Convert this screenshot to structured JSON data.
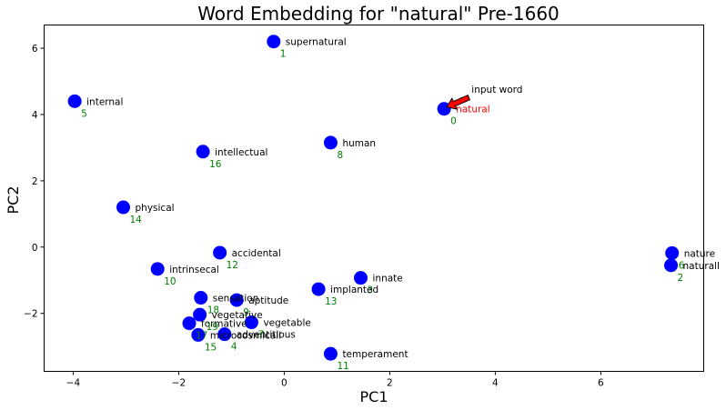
{
  "chart_data": {
    "type": "scatter",
    "title": "Word Embedding for \"natural\" Pre-1660",
    "xlabel": "PC1",
    "ylabel": "PC2",
    "xlim": [
      -4.55,
      7.95
    ],
    "ylim": [
      -3.75,
      6.7
    ],
    "xticks": [
      -4,
      -2,
      0,
      2,
      4,
      6
    ],
    "yticks": [
      -2,
      0,
      2,
      4,
      6
    ],
    "marker_color": "#0000ff",
    "word_color": "#000000",
    "highlight_word_color": "#ff0000",
    "index_color": "#008000",
    "points": [
      {
        "word": "natural",
        "index": "0",
        "x": 3.03,
        "y": 4.17,
        "highlight": true
      },
      {
        "word": "supernatural",
        "index": "1",
        "x": -0.2,
        "y": 6.2
      },
      {
        "word": "naturall",
        "index": "2",
        "x": 7.33,
        "y": -0.55
      },
      {
        "word": "innate",
        "index": "3",
        "x": 1.45,
        "y": -0.93
      },
      {
        "word": "adventitious",
        "index": "4",
        "x": -1.13,
        "y": -2.63
      },
      {
        "word": "internal",
        "index": "5",
        "x": -3.97,
        "y": 4.4
      },
      {
        "word": "nature",
        "index": "6",
        "x": 7.35,
        "y": -0.18
      },
      {
        "word": "vegetable",
        "index": "7",
        "x": -0.62,
        "y": -2.27
      },
      {
        "word": "human",
        "index": "8",
        "x": 0.88,
        "y": 3.15
      },
      {
        "word": "aptitude",
        "index": "9",
        "x": -0.9,
        "y": -1.6
      },
      {
        "word": "intrinsecal",
        "index": "10",
        "x": -2.4,
        "y": -0.66
      },
      {
        "word": "temperament",
        "index": "11",
        "x": 0.88,
        "y": -3.22
      },
      {
        "word": "accidental",
        "index": "12",
        "x": -1.22,
        "y": -0.17
      },
      {
        "word": "implanted",
        "index": "13",
        "x": 0.65,
        "y": -1.27
      },
      {
        "word": "physical",
        "index": "14",
        "x": -3.05,
        "y": 1.2
      },
      {
        "word": "microcosmicall",
        "index": "15",
        "x": -1.63,
        "y": -2.65
      },
      {
        "word": "intellectual",
        "index": "16",
        "x": -1.54,
        "y": 2.88
      },
      {
        "word": "formative",
        "index": "17",
        "x": -1.8,
        "y": -2.3
      },
      {
        "word": "sensation",
        "index": "18",
        "x": -1.58,
        "y": -1.53
      },
      {
        "word": "vegetative",
        "index": "19",
        "x": -1.6,
        "y": -2.04
      }
    ],
    "annotation": {
      "text": "input word",
      "target_word": "natural",
      "text_x": 3.55,
      "text_y": 4.65,
      "arrow_color": "#ff0000"
    }
  }
}
